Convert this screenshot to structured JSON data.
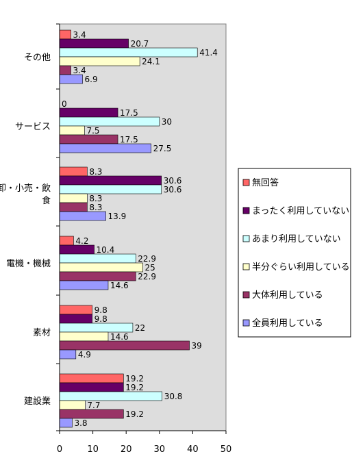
{
  "chart_data": {
    "type": "bar",
    "orientation": "horizontal",
    "xlim": [
      0,
      50
    ],
    "x_ticks": [
      "0",
      "10",
      "20",
      "30",
      "40",
      "50"
    ],
    "categories": [
      {
        "label_lines": [
          "その他"
        ]
      },
      {
        "label_lines": [
          "サービス"
        ]
      },
      {
        "label_lines": [
          "卸・小売・飲",
          "食"
        ]
      },
      {
        "label_lines": [
          "電機・機械"
        ]
      },
      {
        "label_lines": [
          "素材"
        ]
      },
      {
        "label_lines": [
          "建設業"
        ]
      }
    ],
    "series": [
      {
        "name": "無回答",
        "color": "#ff6666",
        "values": [
          3.4,
          0,
          8.3,
          4.2,
          9.8,
          19.2
        ]
      },
      {
        "name": "まったく利用していない",
        "color": "#660066",
        "values": [
          20.7,
          17.5,
          30.6,
          10.4,
          9.8,
          19.2
        ]
      },
      {
        "name": "あまり利用していない",
        "color": "#ccffff",
        "values": [
          41.4,
          30,
          30.6,
          22.9,
          22,
          30.8
        ]
      },
      {
        "name": "半分ぐらい利用している",
        "color": "#ffffcc",
        "values": [
          24.1,
          7.5,
          8.3,
          25,
          14.6,
          7.7
        ]
      },
      {
        "name": "大体利用している",
        "color": "#993366",
        "values": [
          3.4,
          17.5,
          8.3,
          22.9,
          39,
          19.2
        ]
      },
      {
        "name": "全員利用している",
        "color": "#9999ff",
        "values": [
          6.9,
          27.5,
          13.9,
          14.6,
          4.9,
          3.8
        ]
      }
    ],
    "value_labels": [
      [
        "3.4",
        "0",
        "8.3",
        "4.2",
        "9.8",
        "19.2"
      ],
      [
        "20.7",
        "17.5",
        "30.6",
        "10.4",
        "9.8",
        "19.2"
      ],
      [
        "41.4",
        "30",
        "30.6",
        "22.9",
        "22",
        "30.8"
      ],
      [
        "24.1",
        "7.5",
        "8.3",
        "25",
        "14.6",
        "7.7"
      ],
      [
        "3.4",
        "17.5",
        "8.3",
        "22.9",
        "39",
        "19.2"
      ],
      [
        "6.9",
        "27.5",
        "13.9",
        "14.6",
        "4.9",
        "3.8"
      ]
    ],
    "plot_background": "#dddddd",
    "grid": false,
    "legend_position": "right"
  }
}
